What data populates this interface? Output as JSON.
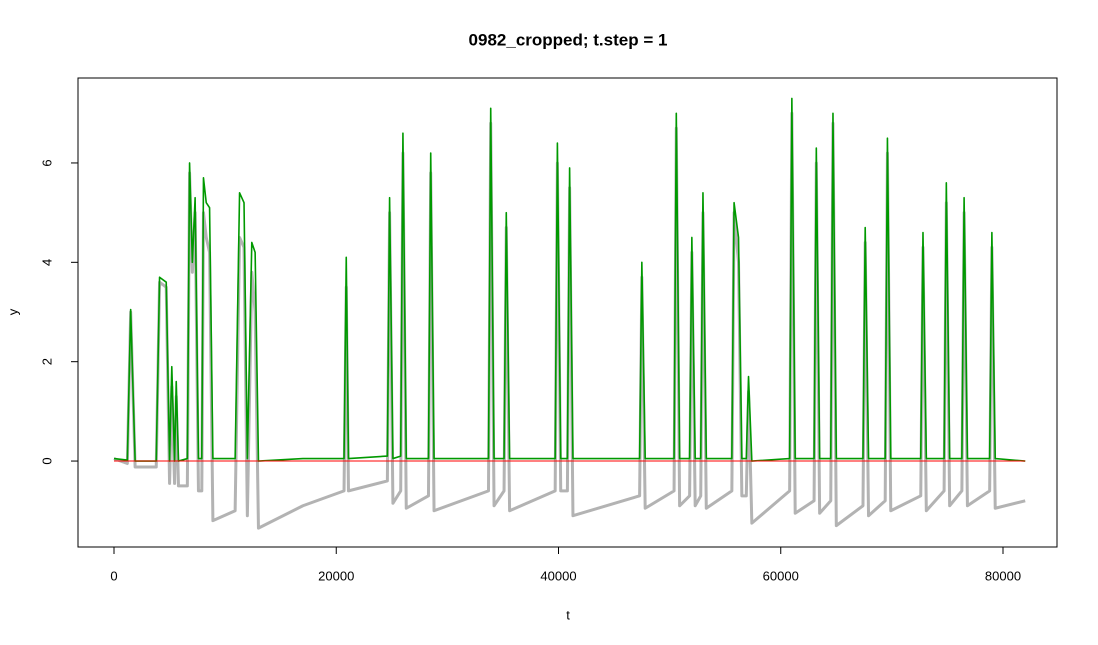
{
  "chart_data": {
    "type": "line",
    "title": "0982_cropped; t.step = 1",
    "x_label": "t",
    "y_label": "y",
    "x": [
      0,
      1200,
      1500,
      1900,
      3800,
      4100,
      4700,
      5000,
      5200,
      5450,
      5600,
      5800,
      6600,
      6800,
      7050,
      7300,
      7600,
      7900,
      8050,
      8300,
      8600,
      8900,
      10900,
      11300,
      11700,
      12000,
      12400,
      12700,
      13000,
      17000,
      20700,
      20900,
      21100,
      24600,
      24800,
      25100,
      25800,
      26000,
      26300,
      28300,
      28500,
      28800,
      33700,
      33900,
      34200,
      35100,
      35300,
      35600,
      39700,
      39900,
      40200,
      40800,
      41000,
      41300,
      47300,
      47500,
      47800,
      50400,
      50600,
      50900,
      51800,
      52000,
      52300,
      52800,
      53000,
      53300,
      55600,
      55800,
      56200,
      56500,
      56900,
      57100,
      57400,
      60800,
      61000,
      61300,
      63000,
      63200,
      63500,
      64500,
      64700,
      65000,
      67400,
      67600,
      67900,
      69400,
      69600,
      69900,
      72600,
      72800,
      73100,
      74700,
      74900,
      75200,
      76300,
      76500,
      76800,
      78800,
      79000,
      79300,
      82000
    ],
    "series": [
      {
        "color": "#b3b3b3",
        "values": [
          0.05,
          -0.05,
          3.0,
          -0.12,
          -0.12,
          3.6,
          3.5,
          -0.45,
          1.5,
          -0.45,
          1.3,
          -0.5,
          -0.5,
          5.8,
          3.8,
          5.0,
          -0.6,
          -0.6,
          5.0,
          4.5,
          4.2,
          -1.2,
          -1.0,
          4.5,
          4.3,
          -1.1,
          3.8,
          3.0,
          -1.35,
          -0.9,
          -0.6,
          3.5,
          -0.6,
          -0.4,
          5.0,
          -0.85,
          -0.6,
          6.2,
          -0.95,
          -0.7,
          5.8,
          -1.0,
          -0.6,
          6.8,
          -0.9,
          -0.6,
          4.7,
          -1.0,
          -0.6,
          6.0,
          -0.6,
          -0.6,
          5.5,
          -1.1,
          -0.7,
          3.7,
          -0.95,
          -0.6,
          6.7,
          -0.9,
          -0.7,
          4.2,
          -0.9,
          -0.7,
          5.0,
          -0.95,
          -0.6,
          5.0,
          4.0,
          -0.7,
          -0.7,
          1.4,
          -1.25,
          -0.6,
          7.0,
          -1.05,
          -0.8,
          6.0,
          -1.05,
          -0.8,
          6.8,
          -1.3,
          -0.9,
          4.4,
          -1.1,
          -0.8,
          6.2,
          -1.0,
          -0.7,
          4.3,
          -1.0,
          -0.6,
          5.2,
          -0.9,
          -0.6,
          5.0,
          -0.9,
          -0.6,
          4.3,
          -0.95,
          -0.8
        ]
      },
      {
        "color": "#009900",
        "values": [
          0.05,
          0.02,
          3.05,
          0.0,
          0.0,
          3.7,
          3.6,
          0.0,
          1.9,
          0.0,
          1.6,
          0.0,
          0.05,
          6.0,
          4.0,
          5.3,
          0.05,
          0.05,
          5.7,
          5.2,
          5.1,
          0.05,
          0.05,
          5.4,
          5.2,
          0.05,
          4.4,
          4.2,
          0.0,
          0.05,
          0.05,
          4.1,
          0.05,
          0.1,
          5.3,
          0.05,
          0.1,
          6.6,
          0.05,
          0.05,
          6.2,
          0.05,
          0.05,
          7.1,
          0.05,
          0.05,
          5.0,
          0.05,
          0.05,
          6.4,
          0.05,
          0.05,
          5.9,
          0.05,
          0.05,
          4.0,
          0.05,
          0.05,
          7.0,
          0.05,
          0.05,
          4.5,
          0.05,
          0.05,
          5.4,
          0.05,
          0.05,
          5.2,
          4.5,
          0.05,
          0.05,
          1.7,
          0.0,
          0.05,
          7.3,
          0.05,
          0.05,
          6.3,
          0.05,
          0.05,
          7.0,
          0.05,
          0.05,
          4.7,
          0.05,
          0.05,
          6.5,
          0.05,
          0.05,
          4.6,
          0.05,
          0.05,
          5.6,
          0.05,
          0.05,
          5.3,
          0.05,
          0.05,
          4.6,
          0.05,
          0.0
        ]
      },
      {
        "color": "#ff0000",
        "x": [
          0,
          82000
        ],
        "values": [
          0,
          0
        ]
      }
    ],
    "xlim": [
      -3240,
      84860
    ],
    "ylim": [
      -1.73,
      7.71
    ],
    "xticks": [
      0,
      20000,
      40000,
      60000,
      80000
    ],
    "yticks": [
      0,
      2,
      4,
      6
    ]
  }
}
